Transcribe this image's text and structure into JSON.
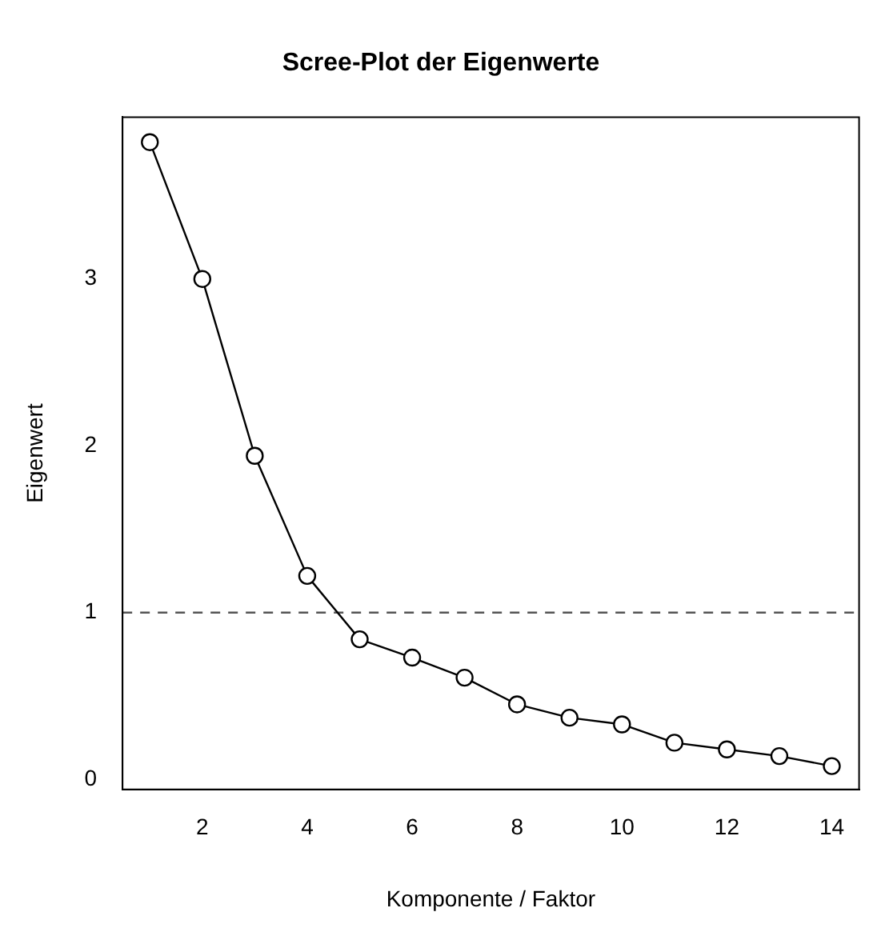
{
  "chart_data": {
    "type": "line",
    "title": "Scree-Plot der Eigenwerte",
    "xlabel": "Komponente / Faktor",
    "ylabel": "Eigenwert",
    "x": [
      1,
      2,
      3,
      4,
      5,
      6,
      7,
      8,
      9,
      10,
      11,
      12,
      13,
      14
    ],
    "series": [
      {
        "color": "#000000",
        "values": [
          3.82,
          3.0,
          1.94,
          1.22,
          0.84,
          0.73,
          0.61,
          0.45,
          0.37,
          0.33,
          0.22,
          0.18,
          0.14,
          0.08
        ]
      }
    ],
    "xlim": [
      0.48,
      14.52
    ],
    "xticks": [
      2,
      4,
      6,
      8,
      10,
      12,
      14
    ],
    "ylim": [
      -0.06,
      3.97
    ],
    "yticks": [
      0,
      1,
      2,
      3
    ],
    "ref_lines": [
      {
        "axis": "y",
        "value": 1,
        "line_style": "dashed",
        "color": "#555555"
      }
    ],
    "grid": false,
    "legend": false,
    "marker": "circle",
    "line_style": "solid"
  }
}
